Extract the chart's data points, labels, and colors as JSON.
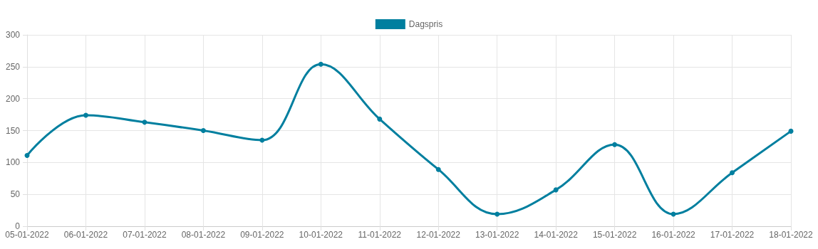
{
  "chart_data": {
    "type": "line",
    "categories": [
      "05-01-2022",
      "06-01-2022",
      "07-01-2022",
      "08-01-2022",
      "09-01-2022",
      "10-01-2022",
      "11-01-2022",
      "12-01-2022",
      "13-01-2022",
      "14-01-2022",
      "15-01-2022",
      "16-01-2022",
      "17-01-2022",
      "18-01-2022"
    ],
    "series": [
      {
        "name": "Dagspris",
        "color": "#007f9f",
        "values": [
          111,
          174,
          163,
          150,
          135,
          254,
          168,
          89,
          19,
          57,
          128,
          19,
          84,
          149
        ]
      }
    ],
    "ylim": [
      0,
      300
    ],
    "yticks": [
      0,
      50,
      100,
      150,
      200,
      250,
      300
    ],
    "grid": true,
    "legend": "top",
    "marker": "circle",
    "line_style": "solid"
  }
}
